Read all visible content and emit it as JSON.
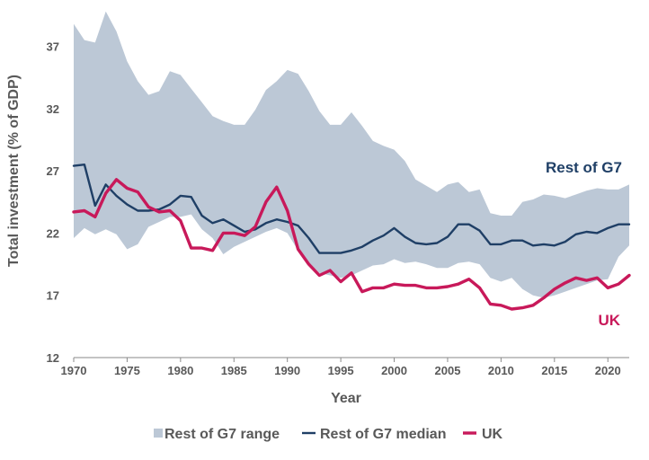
{
  "chart_data": {
    "type": "line",
    "title": "",
    "xlabel": "Year",
    "ylabel": "Total investment (% of GDP)",
    "xlim": [
      1970,
      2022
    ],
    "ylim": [
      12,
      40
    ],
    "xticks": [
      "1970",
      "1975",
      "1980",
      "1985",
      "1990",
      "1995",
      "2000",
      "2005",
      "2010",
      "2015",
      "2020"
    ],
    "yticks": [
      "12",
      "17",
      "22",
      "27",
      "32",
      "37"
    ],
    "grid": false,
    "legend_position": "bottom",
    "colors": {
      "range": "#bcc8d6",
      "median": "#1f3f66",
      "uk": "#c8195a"
    },
    "labels": {
      "median": "Rest of G7",
      "uk": "UK"
    },
    "legend": [
      {
        "key": "range",
        "label": "Rest of G7 range"
      },
      {
        "key": "median",
        "label": "Rest of G7 median"
      },
      {
        "key": "uk",
        "label": "UK"
      }
    ],
    "range": {
      "name": "Rest of G7 range",
      "x": [
        1970,
        1971,
        1972,
        1973,
        1974,
        1975,
        1976,
        1977,
        1978,
        1979,
        1980,
        1981,
        1982,
        1983,
        1984,
        1985,
        1986,
        1987,
        1988,
        1989,
        1990,
        1991,
        1992,
        1993,
        1994,
        1995,
        1996,
        1997,
        1998,
        1999,
        2000,
        2001,
        2002,
        2003,
        2004,
        2005,
        2006,
        2007,
        2008,
        2009,
        2010,
        2011,
        2012,
        2013,
        2014,
        2015,
        2016,
        2017,
        2018,
        2019,
        2020,
        2021,
        2022
      ],
      "upper": [
        38.8,
        37.5,
        37.3,
        39.8,
        38.2,
        35.8,
        34.2,
        33.1,
        33.4,
        35.0,
        34.7,
        33.6,
        32.5,
        31.4,
        31.0,
        30.7,
        30.7,
        31.9,
        33.5,
        34.2,
        35.1,
        34.8,
        33.4,
        31.8,
        30.7,
        30.7,
        31.7,
        30.6,
        29.4,
        29.0,
        28.7,
        27.8,
        26.3,
        25.8,
        25.3,
        25.9,
        26.1,
        25.3,
        25.5,
        23.6,
        23.4,
        23.4,
        24.5,
        24.7,
        25.1,
        25.0,
        24.8,
        25.1,
        25.4,
        25.6,
        25.5,
        25.5,
        25.9
      ],
      "lower": [
        21.6,
        22.4,
        21.9,
        22.3,
        21.9,
        20.7,
        21.1,
        22.5,
        22.9,
        23.3,
        23.3,
        23.5,
        22.3,
        21.6,
        20.3,
        20.9,
        21.3,
        21.7,
        22.1,
        22.4,
        22.0,
        20.6,
        19.6,
        18.8,
        18.6,
        18.4,
        18.6,
        19.0,
        19.4,
        19.5,
        19.9,
        19.6,
        19.7,
        19.5,
        19.2,
        19.2,
        19.6,
        19.7,
        19.5,
        18.4,
        18.1,
        18.4,
        17.5,
        17.0,
        16.8,
        17.0,
        17.3,
        17.6,
        17.9,
        18.2,
        18.3,
        20.1,
        21.0
      ]
    },
    "series": [
      {
        "key": "median",
        "name": "Rest of G7 median",
        "x": [
          1970,
          1971,
          1972,
          1973,
          1974,
          1975,
          1976,
          1977,
          1978,
          1979,
          1980,
          1981,
          1982,
          1983,
          1984,
          1985,
          1986,
          1987,
          1988,
          1989,
          1990,
          1991,
          1992,
          1993,
          1994,
          1995,
          1996,
          1997,
          1998,
          1999,
          2000,
          2001,
          2002,
          2003,
          2004,
          2005,
          2006,
          2007,
          2008,
          2009,
          2010,
          2011,
          2012,
          2013,
          2014,
          2015,
          2016,
          2017,
          2018,
          2019,
          2020,
          2021,
          2022
        ],
        "values": [
          27.4,
          27.5,
          24.2,
          25.9,
          25.0,
          24.3,
          23.8,
          23.8,
          23.9,
          24.3,
          25.0,
          24.9,
          23.4,
          22.8,
          23.1,
          22.6,
          22.1,
          22.3,
          22.8,
          23.1,
          22.9,
          22.6,
          21.6,
          20.4,
          20.4,
          20.4,
          20.6,
          20.9,
          21.4,
          21.8,
          22.4,
          21.7,
          21.2,
          21.1,
          21.2,
          21.7,
          22.7,
          22.7,
          22.2,
          21.1,
          21.1,
          21.4,
          21.4,
          21.0,
          21.1,
          21.0,
          21.3,
          21.9,
          22.1,
          22.0,
          22.4,
          22.7,
          22.7
        ]
      },
      {
        "key": "uk",
        "name": "UK",
        "x": [
          1970,
          1971,
          1972,
          1973,
          1974,
          1975,
          1976,
          1977,
          1978,
          1979,
          1980,
          1981,
          1982,
          1983,
          1984,
          1985,
          1986,
          1987,
          1988,
          1989,
          1990,
          1991,
          1992,
          1993,
          1994,
          1995,
          1996,
          1997,
          1998,
          1999,
          2000,
          2001,
          2002,
          2003,
          2004,
          2005,
          2006,
          2007,
          2008,
          2009,
          2010,
          2011,
          2012,
          2013,
          2014,
          2015,
          2016,
          2017,
          2018,
          2019,
          2020,
          2021,
          2022
        ],
        "values": [
          23.7,
          23.8,
          23.3,
          25.2,
          26.3,
          25.6,
          25.3,
          24.1,
          23.7,
          23.8,
          23.0,
          20.8,
          20.8,
          20.6,
          22.0,
          22.0,
          21.8,
          22.5,
          24.5,
          25.7,
          23.8,
          20.7,
          19.5,
          18.6,
          19.0,
          18.1,
          18.8,
          17.3,
          17.6,
          17.6,
          17.9,
          17.8,
          17.8,
          17.6,
          17.6,
          17.7,
          17.9,
          18.3,
          17.6,
          16.3,
          16.2,
          15.9,
          16.0,
          16.2,
          16.8,
          17.5,
          18.0,
          18.4,
          18.2,
          18.4,
          17.6,
          17.9,
          18.6
        ]
      }
    ]
  }
}
